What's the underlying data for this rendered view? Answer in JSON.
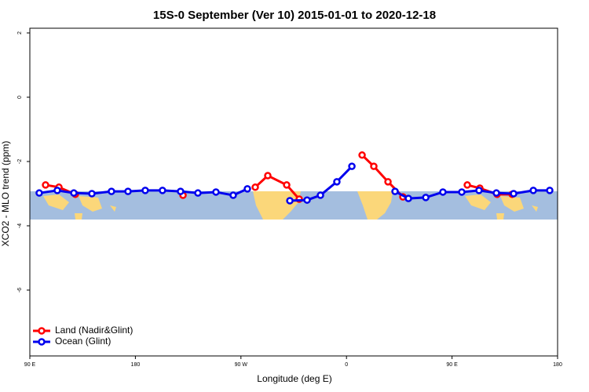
{
  "chart_data": {
    "type": "line",
    "title": "15S-0 September (Ver 10)   2015-01-01 to 2020-12-18",
    "x_label": "Longitude (deg E)",
    "y_label": "XCO2 - MLO trend (ppm)",
    "xlim": [
      90,
      540
    ],
    "xticks": [
      {
        "value": 90,
        "label": "90 E"
      },
      180,
      {
        "value": 270,
        "label": "90 W"
      },
      {
        "value": 360,
        "label": "0"
      },
      {
        "value": 450,
        "label": "90 E"
      },
      {
        "value": 540,
        "label": "180"
      }
    ],
    "ylim": [
      -8,
      2
    ],
    "yticks": [
      2,
      0,
      -2,
      -4,
      -6
    ],
    "legend": "bottom-left",
    "series": [
      {
        "name": "Land (Nadir&Glint)",
        "color": "#ff0000",
        "x": [
          103.4,
          114.8,
          128.8,
          175,
          220.6,
          250,
          282.2,
          292.9,
          309,
          319.7,
          345,
          373.3,
          383.3,
          395.4,
          408.1,
          435,
          463,
          473.7,
          488.4,
          501.2
        ],
        "values": [
          -2.73,
          -2.8,
          -3.02,
          null,
          -3.05,
          null,
          -2.8,
          -2.44,
          -2.73,
          -3.17,
          null,
          -1.8,
          -2.15,
          -2.63,
          -3.1,
          null,
          -2.73,
          -2.83,
          -3.02,
          -3.02
        ]
      },
      {
        "name": "Ocean (Glint)",
        "color": "#0000ee",
        "x": [
          98,
          113.4,
          127.5,
          142.9,
          159.6,
          173.7,
          188.4,
          203.1,
          218.5,
          233.3,
          248.7,
          263.4,
          275.5,
          292.5,
          311.7,
          326.4,
          337.8,
          351.8,
          364.6,
          382.5,
          401.4,
          412.8,
          427.6,
          442.2,
          458.3,
          473,
          487.8,
          502.5,
          519.3,
          533.3
        ],
        "values": [
          -2.98,
          -2.9,
          -2.98,
          -3.0,
          -2.93,
          -2.93,
          -2.9,
          -2.9,
          -2.93,
          -2.98,
          -2.95,
          -3.05,
          -2.85,
          null,
          -3.22,
          -3.2,
          -3.05,
          -2.63,
          -2.15,
          null,
          -2.93,
          -3.15,
          -3.12,
          -2.95,
          -2.95,
          -2.9,
          -2.98,
          -3.0,
          -2.9,
          -2.9
        ]
      }
    ]
  }
}
